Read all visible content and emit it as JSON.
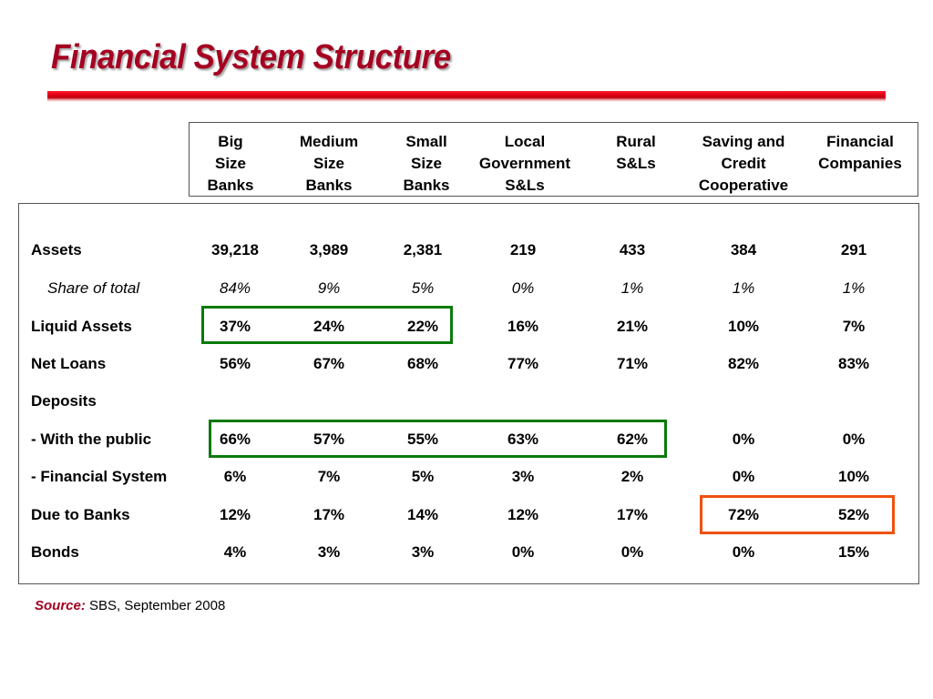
{
  "title": "Financial System Structure",
  "columns": [
    "Big\nSize\nBanks",
    "Medium\nSize\nBanks",
    "Small\nSize\nBanks",
    "Local\nGovernment\nS&Ls",
    "Rural\nS&Ls",
    "Saving and\nCredit\nCooperative",
    "Financial\nCompanies"
  ],
  "rows": [
    {
      "label": "Assets",
      "values": [
        "39,218",
        "3,989",
        "2,381",
        "219",
        "433",
        "384",
        "291"
      ]
    },
    {
      "label": "Share of total",
      "values": [
        "84%",
        "9%",
        "5%",
        "0%",
        "1%",
        "1%",
        "1%"
      ]
    },
    {
      "label": "Liquid Assets",
      "values": [
        "37%",
        "24%",
        "22%",
        "16%",
        "21%",
        "10%",
        "7%"
      ]
    },
    {
      "label": "Net Loans",
      "values": [
        "56%",
        "67%",
        "68%",
        "77%",
        "71%",
        "82%",
        "83%"
      ]
    },
    {
      "label": "Deposits",
      "values": [
        "",
        "",
        "",
        "",
        "",
        "",
        ""
      ]
    },
    {
      "label": "- With the public",
      "values": [
        "66%",
        "57%",
        "55%",
        "63%",
        "62%",
        "0%",
        "0%"
      ]
    },
    {
      "label": "- Financial System",
      "values": [
        "6%",
        "7%",
        "5%",
        "3%",
        "2%",
        "0%",
        "10%"
      ]
    },
    {
      "label": "Due to Banks",
      "values": [
        "12%",
        "17%",
        "14%",
        "12%",
        "17%",
        "72%",
        "52%"
      ]
    },
    {
      "label": "Bonds",
      "values": [
        "4%",
        "3%",
        "3%",
        "0%",
        "0%",
        "0%",
        "15%"
      ]
    }
  ],
  "source": {
    "label": "Source:",
    "text": " SBS, September 2008"
  },
  "colors": {
    "title": "#a50021",
    "highlight_green": "#0a7a0a",
    "highlight_orange": "#f05010"
  }
}
